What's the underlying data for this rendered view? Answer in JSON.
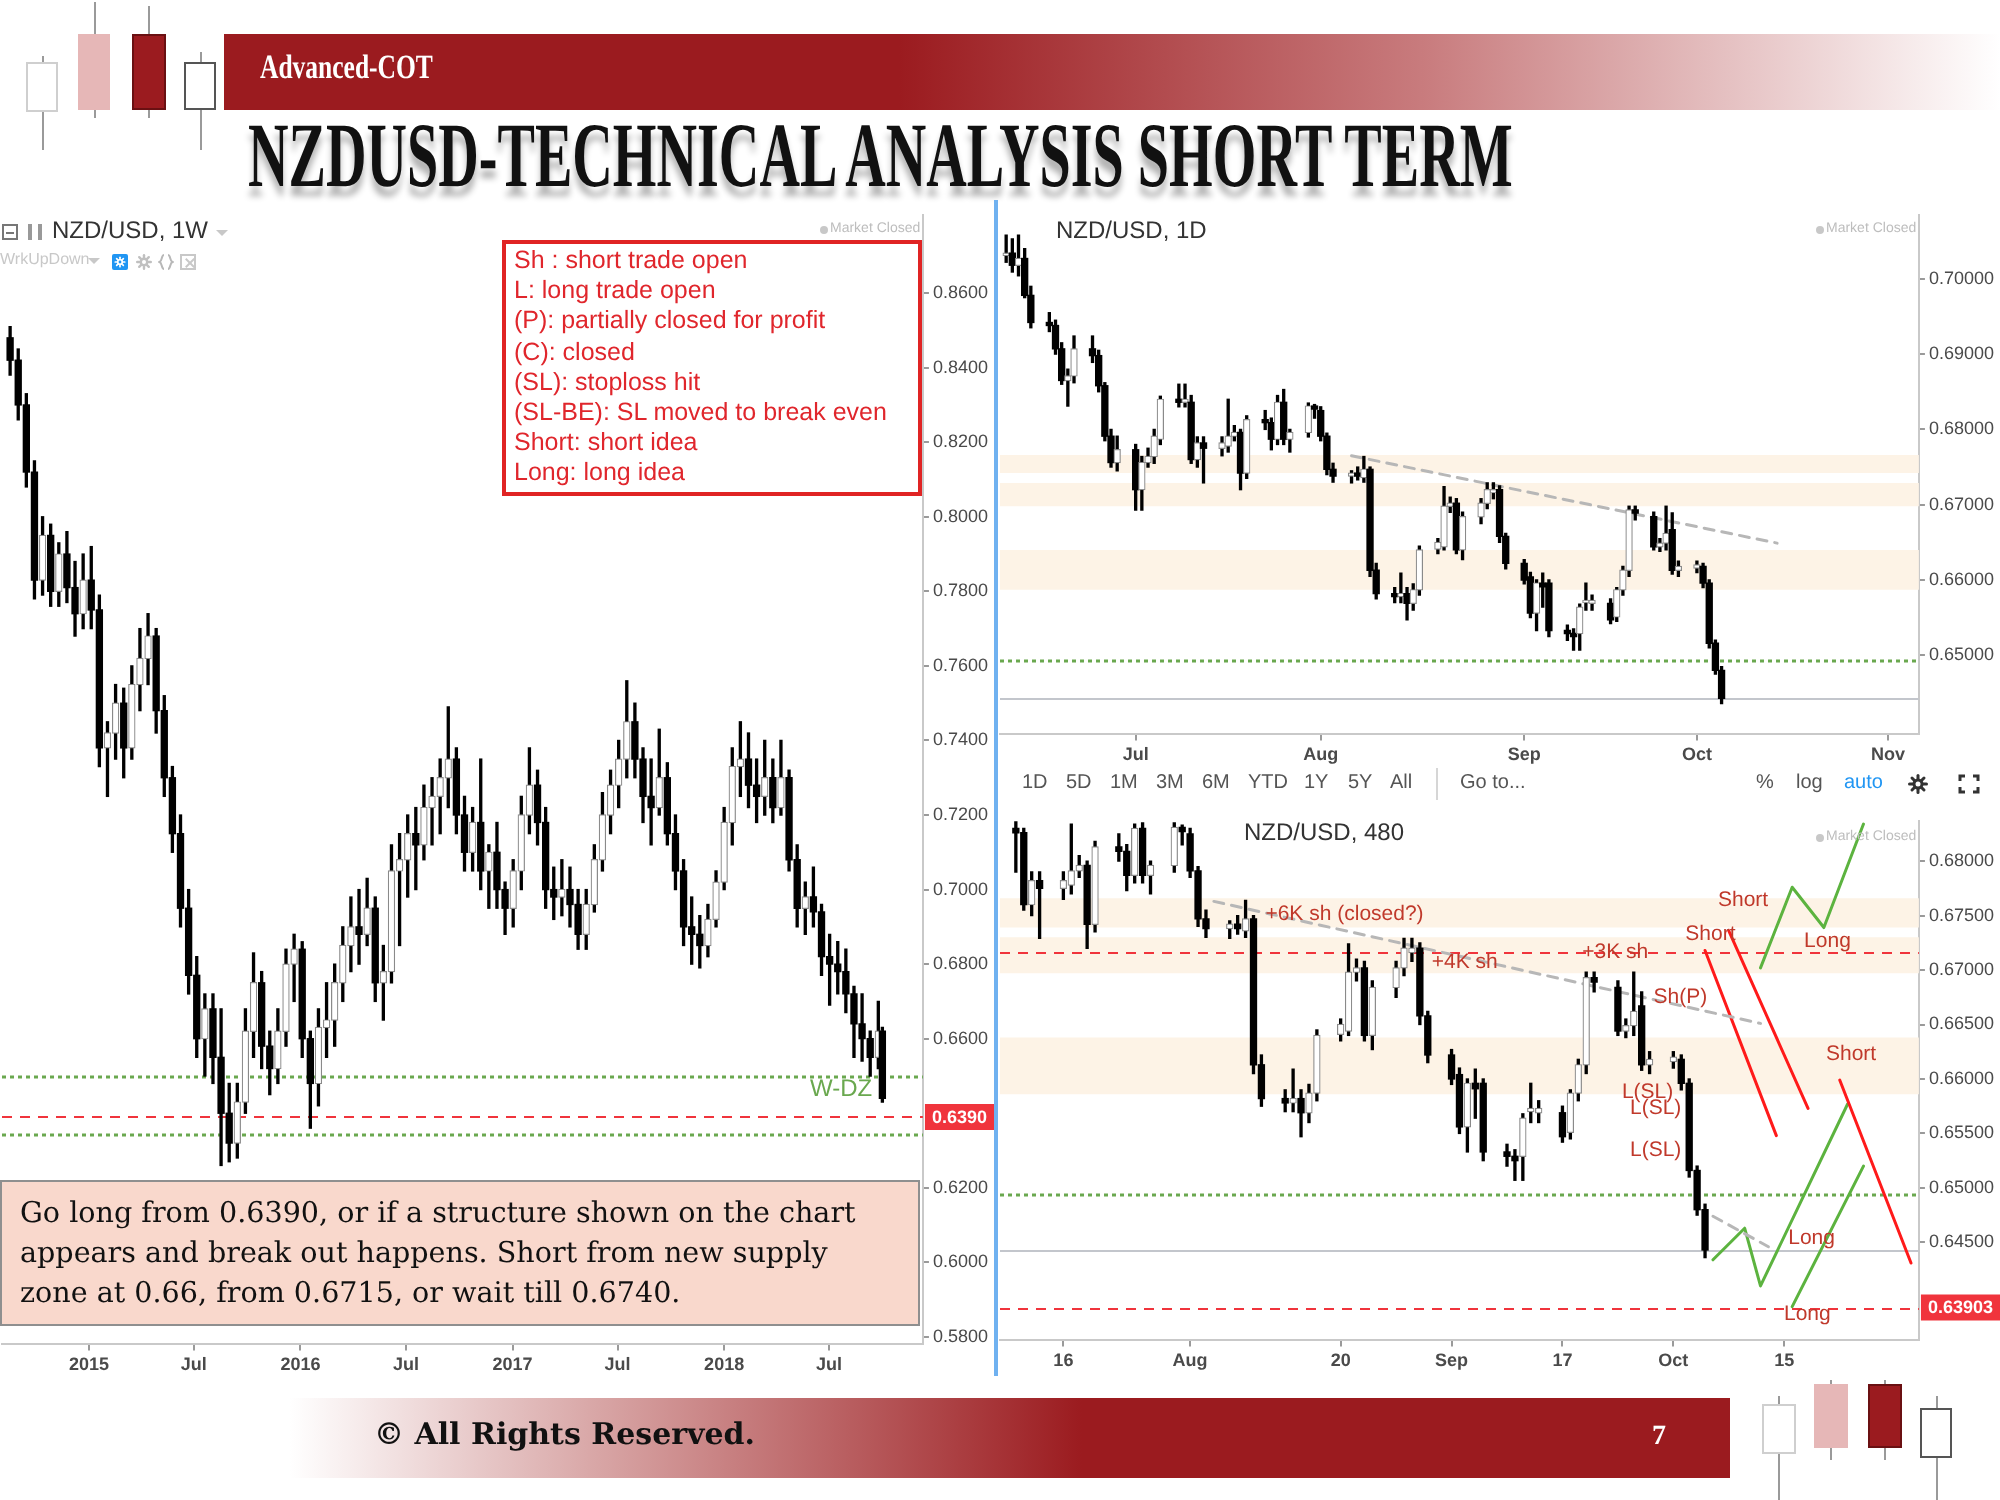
{
  "chart_data": [
    {
      "type": "candlestick",
      "title": "NZDUSD-TECHNICAL ANALYSIS SHORT TERM",
      "subtitle": "Advanced-COT",
      "annotations": [
        "NZD/USD, 1W",
        "Market Closed",
        "WrkUpDown",
        "Sh : short trade open",
        "L: long trade open",
        "(P): partially closed for profit",
        "(C): closed",
        "(SL): stoploss hit",
        "(SL-BE): SL moved to break even",
        "Short: short idea",
        "Long: long idea",
        "Go long from 0.6390, or if a structure shown on the chart appears and break out happens. Short from new supply zone at 0.66, from 0.6715, or wait till 0.6740.",
        "W-DZ",
        "© All Rights Reserved.",
        "7"
      ],
      "x": [
        "2014-08-18",
        "2014-09-01",
        "2014-09-15",
        "2014-09-29",
        "2014-10-13",
        "2014-10-27",
        "2014-11-10",
        "2014-11-24",
        "2014-12-08",
        "2014-12-22",
        "2015-01-05",
        "2015-01-19",
        "2015-02-02",
        "2015-02-16",
        "2015-03-02",
        "2015-03-16",
        "2015-03-30",
        "2015-04-13",
        "2015-04-27",
        "2015-05-11",
        "2015-05-25",
        "2015-06-08",
        "2015-06-22",
        "2015-07-06",
        "2015-07-20",
        "2015-08-03",
        "2015-08-17",
        "2015-08-31",
        "2015-09-14",
        "2015-09-28",
        "2015-10-12",
        "2015-10-26",
        "2015-11-09",
        "2015-11-23",
        "2015-12-07",
        "2015-12-21",
        "2016-01-04",
        "2016-01-18",
        "2016-02-01",
        "2016-02-15",
        "2016-02-29",
        "2016-03-14",
        "2016-03-28",
        "2016-04-11",
        "2016-04-25",
        "2016-05-09",
        "2016-05-23",
        "2016-06-06",
        "2016-06-20",
        "2016-07-04",
        "2016-07-18",
        "2016-08-01",
        "2016-08-15",
        "2016-08-29",
        "2016-09-12",
        "2016-09-26",
        "2016-10-10",
        "2016-10-24",
        "2016-11-07",
        "2016-11-21",
        "2016-12-05",
        "2016-12-19",
        "2017-01-02",
        "2017-01-16",
        "2017-01-30",
        "2017-02-13",
        "2017-02-27",
        "2017-03-13",
        "2017-03-27",
        "2017-04-10",
        "2017-04-24",
        "2017-05-08",
        "2017-05-22",
        "2017-06-05",
        "2017-06-19",
        "2017-07-03",
        "2017-07-17",
        "2017-07-31",
        "2017-08-14",
        "2017-08-28",
        "2017-09-11",
        "2017-09-25",
        "2017-10-09",
        "2017-10-23",
        "2017-11-06",
        "2017-11-20",
        "2017-12-04",
        "2017-12-18",
        "2018-01-01",
        "2018-01-15",
        "2018-01-29",
        "2018-02-12",
        "2018-02-26",
        "2018-03-12",
        "2018-03-26",
        "2018-04-09",
        "2018-04-23",
        "2018-05-07",
        "2018-05-21",
        "2018-06-04",
        "2018-06-18",
        "2018-07-02",
        "2018-07-16",
        "2018-07-30",
        "2018-08-13",
        "2018-08-27",
        "2018-09-10",
        "2018-09-24",
        "2018-10-01"
      ],
      "ohlc": [
        [
          0.848,
          0.851,
          0.838,
          0.842
        ],
        [
          0.842,
          0.845,
          0.826,
          0.83
        ],
        [
          0.83,
          0.833,
          0.808,
          0.812
        ],
        [
          0.812,
          0.815,
          0.778,
          0.783
        ],
        [
          0.783,
          0.8,
          0.779,
          0.795
        ],
        [
          0.795,
          0.798,
          0.776,
          0.78
        ],
        [
          0.78,
          0.793,
          0.776,
          0.79
        ],
        [
          0.79,
          0.796,
          0.777,
          0.781
        ],
        [
          0.781,
          0.788,
          0.768,
          0.774
        ],
        [
          0.774,
          0.79,
          0.77,
          0.783
        ],
        [
          0.783,
          0.792,
          0.77,
          0.775
        ],
        [
          0.775,
          0.779,
          0.733,
          0.738
        ],
        [
          0.738,
          0.745,
          0.725,
          0.742
        ],
        [
          0.742,
          0.755,
          0.735,
          0.75
        ],
        [
          0.75,
          0.754,
          0.73,
          0.738
        ],
        [
          0.738,
          0.76,
          0.735,
          0.755
        ],
        [
          0.755,
          0.77,
          0.748,
          0.762
        ],
        [
          0.762,
          0.774,
          0.755,
          0.768
        ],
        [
          0.768,
          0.77,
          0.742,
          0.748
        ],
        [
          0.748,
          0.752,
          0.725,
          0.73
        ],
        [
          0.73,
          0.733,
          0.71,
          0.715
        ],
        [
          0.715,
          0.72,
          0.69,
          0.695
        ],
        [
          0.695,
          0.7,
          0.672,
          0.677
        ],
        [
          0.677,
          0.682,
          0.655,
          0.66
        ],
        [
          0.66,
          0.672,
          0.65,
          0.668
        ],
        [
          0.668,
          0.672,
          0.648,
          0.655
        ],
        [
          0.655,
          0.668,
          0.626,
          0.64
        ],
        [
          0.64,
          0.648,
          0.627,
          0.632
        ],
        [
          0.632,
          0.648,
          0.628,
          0.643
        ],
        [
          0.643,
          0.668,
          0.64,
          0.662
        ],
        [
          0.662,
          0.683,
          0.655,
          0.675
        ],
        [
          0.675,
          0.678,
          0.652,
          0.658
        ],
        [
          0.658,
          0.662,
          0.645,
          0.652
        ],
        [
          0.652,
          0.668,
          0.648,
          0.662
        ],
        [
          0.662,
          0.684,
          0.658,
          0.68
        ],
        [
          0.68,
          0.688,
          0.67,
          0.684
        ],
        [
          0.684,
          0.686,
          0.655,
          0.66
        ],
        [
          0.66,
          0.662,
          0.636,
          0.648
        ],
        [
          0.648,
          0.668,
          0.642,
          0.663
        ],
        [
          0.663,
          0.675,
          0.655,
          0.665
        ],
        [
          0.665,
          0.68,
          0.658,
          0.675
        ],
        [
          0.675,
          0.69,
          0.67,
          0.685
        ],
        [
          0.685,
          0.698,
          0.678,
          0.69
        ],
        [
          0.69,
          0.7,
          0.68,
          0.688
        ],
        [
          0.688,
          0.703,
          0.685,
          0.695
        ],
        [
          0.695,
          0.698,
          0.67,
          0.675
        ],
        [
          0.675,
          0.685,
          0.665,
          0.678
        ],
        [
          0.678,
          0.712,
          0.675,
          0.705
        ],
        [
          0.705,
          0.715,
          0.685,
          0.708
        ],
        [
          0.708,
          0.72,
          0.698,
          0.715
        ],
        [
          0.715,
          0.722,
          0.7,
          0.712
        ],
        [
          0.712,
          0.728,
          0.708,
          0.722
        ],
        [
          0.722,
          0.73,
          0.712,
          0.725
        ],
        [
          0.725,
          0.735,
          0.715,
          0.73
        ],
        [
          0.73,
          0.749,
          0.722,
          0.735
        ],
        [
          0.735,
          0.738,
          0.715,
          0.72
        ],
        [
          0.72,
          0.725,
          0.705,
          0.71
        ],
        [
          0.71,
          0.722,
          0.705,
          0.718
        ],
        [
          0.718,
          0.735,
          0.7,
          0.705
        ],
        [
          0.705,
          0.712,
          0.695,
          0.71
        ],
        [
          0.71,
          0.718,
          0.695,
          0.7
        ],
        [
          0.7,
          0.702,
          0.688,
          0.695
        ],
        [
          0.695,
          0.708,
          0.69,
          0.705
        ],
        [
          0.705,
          0.725,
          0.7,
          0.72
        ],
        [
          0.72,
          0.738,
          0.715,
          0.728
        ],
        [
          0.728,
          0.732,
          0.712,
          0.718
        ],
        [
          0.718,
          0.722,
          0.695,
          0.7
        ],
        [
          0.7,
          0.706,
          0.692,
          0.698
        ],
        [
          0.698,
          0.708,
          0.693,
          0.7
        ],
        [
          0.7,
          0.706,
          0.69,
          0.696
        ],
        [
          0.696,
          0.7,
          0.684,
          0.688
        ],
        [
          0.688,
          0.7,
          0.684,
          0.696
        ],
        [
          0.696,
          0.712,
          0.694,
          0.708
        ],
        [
          0.708,
          0.726,
          0.705,
          0.72
        ],
        [
          0.72,
          0.732,
          0.715,
          0.728
        ],
        [
          0.728,
          0.74,
          0.722,
          0.735
        ],
        [
          0.735,
          0.756,
          0.73,
          0.745
        ],
        [
          0.745,
          0.75,
          0.73,
          0.735
        ],
        [
          0.735,
          0.738,
          0.718,
          0.725
        ],
        [
          0.725,
          0.735,
          0.712,
          0.722
        ],
        [
          0.722,
          0.743,
          0.72,
          0.73
        ],
        [
          0.73,
          0.734,
          0.712,
          0.715
        ],
        [
          0.715,
          0.72,
          0.7,
          0.705
        ],
        [
          0.705,
          0.708,
          0.685,
          0.69
        ],
        [
          0.69,
          0.698,
          0.68,
          0.688
        ],
        [
          0.688,
          0.693,
          0.679,
          0.685
        ],
        [
          0.685,
          0.696,
          0.682,
          0.692
        ],
        [
          0.692,
          0.705,
          0.69,
          0.702
        ],
        [
          0.702,
          0.722,
          0.7,
          0.718
        ],
        [
          0.718,
          0.738,
          0.712,
          0.733
        ],
        [
          0.733,
          0.745,
          0.725,
          0.735
        ],
        [
          0.735,
          0.742,
          0.722,
          0.728
        ],
        [
          0.728,
          0.735,
          0.718,
          0.725
        ],
        [
          0.725,
          0.74,
          0.72,
          0.73
        ],
        [
          0.73,
          0.735,
          0.718,
          0.722
        ],
        [
          0.722,
          0.74,
          0.72,
          0.73
        ],
        [
          0.73,
          0.732,
          0.705,
          0.708
        ],
        [
          0.708,
          0.712,
          0.69,
          0.695
        ],
        [
          0.695,
          0.702,
          0.688,
          0.698
        ],
        [
          0.698,
          0.706,
          0.69,
          0.694
        ],
        [
          0.694,
          0.696,
          0.677,
          0.682
        ],
        [
          0.682,
          0.688,
          0.669,
          0.68
        ],
        [
          0.68,
          0.686,
          0.672,
          0.678
        ],
        [
          0.678,
          0.684,
          0.667,
          0.672
        ],
        [
          0.672,
          0.674,
          0.655,
          0.664
        ],
        [
          0.664,
          0.672,
          0.654,
          0.66
        ],
        [
          0.66,
          0.662,
          0.65,
          0.655
        ],
        [
          0.655,
          0.67,
          0.652,
          0.662
        ],
        [
          0.662,
          0.663,
          0.643,
          0.644
        ]
      ],
      "xlim": [
        "2014-08-04",
        "2018-12-10"
      ],
      "xticks": [
        {
          "value": "2015-01-01",
          "label": "2015"
        },
        {
          "value": "2015-07-01",
          "label": "Jul"
        },
        {
          "value": "2016-01-01",
          "label": "2016"
        },
        {
          "value": "2016-07-01",
          "label": "Jul"
        },
        {
          "value": "2017-01-01",
          "label": "2017"
        },
        {
          "value": "2017-07-01",
          "label": "Jul"
        },
        {
          "value": "2018-01-01",
          "label": "2018"
        },
        {
          "value": "2018-07-01",
          "label": "Jul"
        }
      ],
      "ylim": [
        0.578,
        0.881
      ],
      "yticks": [
        {
          "value": 0.58,
          "label": "0.5800"
        },
        {
          "value": 0.6,
          "label": "0.6000"
        },
        {
          "value": 0.62,
          "label": "0.6200"
        },
        {
          "value": 0.66,
          "label": "0.6600"
        },
        {
          "value": 0.68,
          "label": "0.6800"
        },
        {
          "value": 0.7,
          "label": "0.7000"
        },
        {
          "value": 0.72,
          "label": "0.7200"
        },
        {
          "value": 0.74,
          "label": "0.7400"
        },
        {
          "value": 0.76,
          "label": "0.7600"
        },
        {
          "value": 0.78,
          "label": "0.7800"
        },
        {
          "value": 0.8,
          "label": "0.8000"
        },
        {
          "value": 0.82,
          "label": "0.8200"
        },
        {
          "value": 0.84,
          "label": "0.8400"
        },
        {
          "value": 0.86,
          "label": "0.8600"
        }
      ],
      "ref_lines": [
        {
          "axis": "y",
          "value": 0.639,
          "label": "0.6390",
          "color": "#f0343c",
          "line_style": "dashed"
        },
        {
          "axis": "y",
          "value": 0.6502,
          "color": "#6aa84f",
          "line_style": "dotted"
        },
        {
          "axis": "y",
          "value": 0.6346,
          "color": "#6aa84f",
          "line_style": "dotted"
        }
      ]
    },
    {
      "type": "candlestick",
      "title": "NZD/USD, 1D",
      "annotations": [
        "Market Closed"
      ],
      "x": [
        "2018-06-11",
        "2018-06-12",
        "2018-06-13",
        "2018-06-14",
        "2018-06-15",
        "2018-06-18",
        "2018-06-19",
        "2018-06-20",
        "2018-06-21",
        "2018-06-22",
        "2018-06-25",
        "2018-06-26",
        "2018-06-27",
        "2018-06-28",
        "2018-06-29",
        "2018-07-02",
        "2018-07-03",
        "2018-07-04",
        "2018-07-05",
        "2018-07-06",
        "2018-07-09",
        "2018-07-10",
        "2018-07-11",
        "2018-07-12",
        "2018-07-13",
        "2018-07-16",
        "2018-07-17",
        "2018-07-18",
        "2018-07-19",
        "2018-07-20",
        "2018-07-23",
        "2018-07-24",
        "2018-07-25",
        "2018-07-26",
        "2018-07-27",
        "2018-07-30",
        "2018-07-31",
        "2018-08-01",
        "2018-08-02",
        "2018-08-03",
        "2018-08-06",
        "2018-08-07",
        "2018-08-08",
        "2018-08-09",
        "2018-08-10",
        "2018-08-13",
        "2018-08-14",
        "2018-08-15",
        "2018-08-16",
        "2018-08-17",
        "2018-08-20",
        "2018-08-21",
        "2018-08-22",
        "2018-08-23",
        "2018-08-24",
        "2018-08-27",
        "2018-08-28",
        "2018-08-29",
        "2018-08-30",
        "2018-08-31",
        "2018-09-03",
        "2018-09-04",
        "2018-09-05",
        "2018-09-06",
        "2018-09-07",
        "2018-09-10",
        "2018-09-11",
        "2018-09-12",
        "2018-09-13",
        "2018-09-14",
        "2018-09-17",
        "2018-09-18",
        "2018-09-19",
        "2018-09-20",
        "2018-09-21",
        "2018-09-24",
        "2018-09-25",
        "2018-09-26",
        "2018-09-27",
        "2018-09-28",
        "2018-10-01",
        "2018-10-02",
        "2018-10-03",
        "2018-10-04",
        "2018-10-05"
      ],
      "ohlc": [
        [
          0.7031,
          0.7058,
          0.7022,
          0.7034
        ],
        [
          0.7034,
          0.7053,
          0.7009,
          0.7018
        ],
        [
          0.7018,
          0.7058,
          0.7004,
          0.7027
        ],
        [
          0.7027,
          0.704,
          0.6975,
          0.6978
        ],
        [
          0.6978,
          0.699,
          0.6935,
          0.6942
        ],
        [
          0.6942,
          0.6955,
          0.693,
          0.6938
        ],
        [
          0.6938,
          0.6945,
          0.69,
          0.6907
        ],
        [
          0.6907,
          0.6915,
          0.686,
          0.6865
        ],
        [
          0.6865,
          0.688,
          0.6831,
          0.6871
        ],
        [
          0.6871,
          0.6924,
          0.6862,
          0.6907
        ],
        [
          0.6907,
          0.6924,
          0.6889,
          0.6898
        ],
        [
          0.6898,
          0.6905,
          0.685,
          0.6858
        ],
        [
          0.6858,
          0.6862,
          0.6785,
          0.6791
        ],
        [
          0.6791,
          0.68,
          0.675,
          0.6756
        ],
        [
          0.6756,
          0.6791,
          0.6745,
          0.6773
        ],
        [
          0.6773,
          0.678,
          0.6693,
          0.672
        ],
        [
          0.672,
          0.6764,
          0.6693,
          0.6756
        ],
        [
          0.6756,
          0.6775,
          0.675,
          0.6764
        ],
        [
          0.6764,
          0.68,
          0.6755,
          0.6791
        ],
        [
          0.6787,
          0.6844,
          0.678,
          0.684
        ],
        [
          0.684,
          0.686,
          0.683,
          0.6836
        ],
        [
          0.6836,
          0.686,
          0.683,
          0.684
        ],
        [
          0.6836,
          0.6845,
          0.6755,
          0.676
        ],
        [
          0.676,
          0.679,
          0.675,
          0.6782
        ],
        [
          0.6782,
          0.679,
          0.6729,
          0.6775
        ],
        [
          0.6775,
          0.679,
          0.6765,
          0.6782
        ],
        [
          0.6778,
          0.684,
          0.677,
          0.6791
        ],
        [
          0.6791,
          0.6805,
          0.6785,
          0.6796
        ],
        [
          0.6796,
          0.68,
          0.672,
          0.6742
        ],
        [
          0.6742,
          0.6818,
          0.6735,
          0.6813
        ],
        [
          0.6813,
          0.6825,
          0.68,
          0.6809
        ],
        [
          0.6809,
          0.6815,
          0.6773,
          0.6787
        ],
        [
          0.6787,
          0.6845,
          0.678,
          0.6836
        ],
        [
          0.6836,
          0.6853,
          0.678,
          0.6787
        ],
        [
          0.6787,
          0.68,
          0.677,
          0.6796
        ],
        [
          0.6796,
          0.6835,
          0.679,
          0.6831
        ],
        [
          0.6831,
          0.6833,
          0.6815,
          0.6827
        ],
        [
          0.6825,
          0.683,
          0.6785,
          0.6791
        ],
        [
          0.6791,
          0.6795,
          0.674,
          0.6747
        ],
        [
          0.6747,
          0.6755,
          0.673,
          0.6738
        ],
        [
          0.6738,
          0.6745,
          0.6729,
          0.6742
        ],
        [
          0.6742,
          0.675,
          0.6733,
          0.6738
        ],
        [
          0.6736,
          0.6764,
          0.673,
          0.6747
        ],
        [
          0.6747,
          0.675,
          0.6605,
          0.6613
        ],
        [
          0.6613,
          0.6622,
          0.6575,
          0.6582
        ],
        [
          0.6582,
          0.659,
          0.657,
          0.6578
        ],
        [
          0.6578,
          0.6609,
          0.657,
          0.6582
        ],
        [
          0.6582,
          0.659,
          0.6547,
          0.6569
        ],
        [
          0.6569,
          0.6595,
          0.656,
          0.6587
        ],
        [
          0.6587,
          0.6645,
          0.658,
          0.664
        ],
        [
          0.6641,
          0.6655,
          0.6635,
          0.665
        ],
        [
          0.6644,
          0.6724,
          0.664,
          0.6698
        ],
        [
          0.6698,
          0.671,
          0.669,
          0.6702
        ],
        [
          0.6702,
          0.6708,
          0.6635,
          0.664
        ],
        [
          0.664,
          0.669,
          0.6627,
          0.6684
        ],
        [
          0.6684,
          0.6708,
          0.6675,
          0.6702
        ],
        [
          0.6702,
          0.6729,
          0.6695,
          0.672
        ],
        [
          0.6716,
          0.6729,
          0.6708,
          0.672
        ],
        [
          0.672,
          0.6725,
          0.665,
          0.6658
        ],
        [
          0.6658,
          0.6662,
          0.6615,
          0.6622
        ],
        [
          0.6622,
          0.6627,
          0.6595,
          0.66
        ],
        [
          0.6604,
          0.661,
          0.655,
          0.6556
        ],
        [
          0.6556,
          0.66,
          0.6533,
          0.6596
        ],
        [
          0.6596,
          0.6609,
          0.6564,
          0.6591
        ],
        [
          0.6596,
          0.66,
          0.6525,
          0.6533
        ],
        [
          0.6533,
          0.654,
          0.652,
          0.6529
        ],
        [
          0.6529,
          0.6535,
          0.6507,
          0.6525
        ],
        [
          0.6529,
          0.6568,
          0.6507,
          0.6564
        ],
        [
          0.657,
          0.6596,
          0.656,
          0.6573
        ],
        [
          0.6569,
          0.658,
          0.656,
          0.6573
        ],
        [
          0.6569,
          0.6575,
          0.6542,
          0.6547
        ],
        [
          0.6551,
          0.659,
          0.6545,
          0.6587
        ],
        [
          0.6587,
          0.6618,
          0.658,
          0.6613
        ],
        [
          0.6613,
          0.6698,
          0.6605,
          0.6693
        ],
        [
          0.6693,
          0.6698,
          0.668,
          0.6689
        ],
        [
          0.6684,
          0.669,
          0.664,
          0.6644
        ],
        [
          0.6644,
          0.6655,
          0.6638,
          0.6649
        ],
        [
          0.6649,
          0.6698,
          0.664,
          0.6662
        ],
        [
          0.6667,
          0.6689,
          0.6608,
          0.6613
        ],
        [
          0.6613,
          0.6625,
          0.6605,
          0.6618
        ],
        [
          0.6616,
          0.6625,
          0.661,
          0.662
        ],
        [
          0.6618,
          0.6622,
          0.659,
          0.6596
        ],
        [
          0.6596,
          0.66,
          0.651,
          0.6516
        ],
        [
          0.6516,
          0.652,
          0.6475,
          0.648
        ],
        [
          0.648,
          0.6485,
          0.6436,
          0.6443
        ]
      ],
      "xlim": [
        "2018-06-10",
        "2018-11-06"
      ],
      "xticks": [
        {
          "value": "2018-07-02",
          "label": "Jul"
        },
        {
          "value": "2018-08-01",
          "label": "Aug"
        },
        {
          "value": "2018-09-03",
          "label": "Sep"
        },
        {
          "value": "2018-10-01",
          "label": "Oct"
        },
        {
          "value": "2018-11-01",
          "label": "Nov"
        }
      ],
      "ylim": [
        0.6395,
        0.7085
      ],
      "yticks": [
        {
          "value": 0.65,
          "label": "0.65000"
        },
        {
          "value": 0.66,
          "label": "0.66000"
        },
        {
          "value": 0.67,
          "label": "0.67000"
        },
        {
          "value": 0.68,
          "label": "0.68000"
        },
        {
          "value": 0.69,
          "label": "0.69000"
        },
        {
          "value": 0.7,
          "label": "0.70000"
        }
      ],
      "bands": [
        {
          "axis": "y",
          "from": 0.6742,
          "to": 0.6766,
          "color": "#fdf3e6"
        },
        {
          "axis": "y",
          "from": 0.6698,
          "to": 0.6729,
          "color": "#fdf3e6"
        },
        {
          "axis": "y",
          "from": 0.6587,
          "to": 0.664,
          "color": "#fdf3e6"
        }
      ],
      "ref_lines": [
        {
          "axis": "y",
          "value": 0.6495,
          "color": "#6aa84f",
          "line_style": "dotted"
        },
        {
          "axis": "y",
          "value": 0.6443,
          "color": "#c3c6cc",
          "line_style": "solid"
        }
      ],
      "series": [
        {
          "type": "line",
          "x": [
            "2018-08-06",
            "2018-10-14"
          ],
          "values": [
            0.6765,
            0.6649
          ],
          "color": "#b7b7b7",
          "line_style": "dashed"
        }
      ]
    },
    {
      "type": "candlestick",
      "title": "NZD/USD, 480",
      "annotations": [
        "1D",
        "5D",
        "1M",
        "3M",
        "6M",
        "YTD",
        "1Y",
        "5Y",
        "All",
        "Go to...",
        "%",
        "log",
        "auto",
        "Market Closed",
        {
          "text": "+6K sh (closed?)",
          "x": "2018-08-10",
          "y": 0.6751
        },
        {
          "text": "+4K sh",
          "x": "2018-08-31",
          "y": 0.6707
        },
        {
          "text": "+3K sh",
          "x": "2018-09-19",
          "y": 0.6716
        },
        {
          "text": "Sh(P)",
          "x": "2018-09-28",
          "y": 0.6675
        },
        {
          "text": "L(SL)",
          "x": "2018-09-24",
          "y": 0.6588
        },
        "L(SL)",
        "L(SL)",
        "Short",
        {
          "text": "Short",
          "x": "2018-10-02",
          "y": 0.6733
        },
        {
          "text": "Long",
          "x": "2018-10-17",
          "y": 0.6726
        },
        "Short",
        {
          "text": "Long",
          "x": "2018-10-15",
          "y": 0.6454
        },
        "Long"
      ],
      "x": [
        "2018-07-10",
        "2018-07-11",
        "2018-07-12",
        "2018-07-13",
        "2018-07-16",
        "2018-07-17",
        "2018-07-18",
        "2018-07-19",
        "2018-07-20",
        "2018-07-23",
        "2018-07-24",
        "2018-07-25",
        "2018-07-26",
        "2018-07-27",
        "2018-07-30",
        "2018-07-31",
        "2018-08-01",
        "2018-08-02",
        "2018-08-03",
        "2018-08-06",
        "2018-08-07",
        "2018-08-08",
        "2018-08-09",
        "2018-08-10",
        "2018-08-13",
        "2018-08-14",
        "2018-08-15",
        "2018-08-16",
        "2018-08-17",
        "2018-08-20",
        "2018-08-21",
        "2018-08-22",
        "2018-08-23",
        "2018-08-24",
        "2018-08-27",
        "2018-08-28",
        "2018-08-29",
        "2018-08-30",
        "2018-08-31",
        "2018-09-03",
        "2018-09-04",
        "2018-09-05",
        "2018-09-06",
        "2018-09-07",
        "2018-09-10",
        "2018-09-11",
        "2018-09-12",
        "2018-09-13",
        "2018-09-14",
        "2018-09-17",
        "2018-09-18",
        "2018-09-19",
        "2018-09-20",
        "2018-09-21",
        "2018-09-24",
        "2018-09-25",
        "2018-09-26",
        "2018-09-27",
        "2018-09-28",
        "2018-10-01",
        "2018-10-02",
        "2018-10-03",
        "2018-10-04",
        "2018-10-05"
      ],
      "ohlc": [
        [
          0.683,
          0.6836,
          0.679,
          0.6826
        ],
        [
          0.6826,
          0.683,
          0.6755,
          0.676
        ],
        [
          0.676,
          0.679,
          0.675,
          0.6782
        ],
        [
          0.6782,
          0.679,
          0.6729,
          0.6775
        ],
        [
          0.6775,
          0.679,
          0.6765,
          0.6782
        ],
        [
          0.6778,
          0.6834,
          0.677,
          0.6791
        ],
        [
          0.6791,
          0.6805,
          0.6785,
          0.6796
        ],
        [
          0.6796,
          0.68,
          0.672,
          0.6742
        ],
        [
          0.6742,
          0.6818,
          0.6735,
          0.6813
        ],
        [
          0.6813,
          0.6825,
          0.68,
          0.6809
        ],
        [
          0.6809,
          0.6815,
          0.6773,
          0.6787
        ],
        [
          0.6787,
          0.6834,
          0.678,
          0.683
        ],
        [
          0.683,
          0.6835,
          0.678,
          0.6787
        ],
        [
          0.6787,
          0.68,
          0.677,
          0.6796
        ],
        [
          0.6796,
          0.6835,
          0.679,
          0.6831
        ],
        [
          0.6831,
          0.6833,
          0.6815,
          0.6827
        ],
        [
          0.6825,
          0.683,
          0.6785,
          0.6791
        ],
        [
          0.6791,
          0.6795,
          0.674,
          0.6747
        ],
        [
          0.6747,
          0.6755,
          0.673,
          0.6738
        ],
        [
          0.6738,
          0.6745,
          0.6729,
          0.6742
        ],
        [
          0.6742,
          0.675,
          0.6733,
          0.6738
        ],
        [
          0.6736,
          0.6764,
          0.673,
          0.6747
        ],
        [
          0.6747,
          0.675,
          0.6605,
          0.6613
        ],
        [
          0.6613,
          0.6622,
          0.6575,
          0.6582
        ],
        [
          0.6582,
          0.659,
          0.657,
          0.6578
        ],
        [
          0.6578,
          0.6609,
          0.657,
          0.6582
        ],
        [
          0.6582,
          0.659,
          0.6547,
          0.6569
        ],
        [
          0.6569,
          0.6595,
          0.656,
          0.6587
        ],
        [
          0.6587,
          0.6645,
          0.658,
          0.664
        ],
        [
          0.6641,
          0.6655,
          0.6635,
          0.665
        ],
        [
          0.6644,
          0.6724,
          0.664,
          0.6698
        ],
        [
          0.6698,
          0.671,
          0.669,
          0.6702
        ],
        [
          0.6702,
          0.6708,
          0.6635,
          0.664
        ],
        [
          0.664,
          0.669,
          0.6627,
          0.6684
        ],
        [
          0.6684,
          0.6708,
          0.6675,
          0.6702
        ],
        [
          0.6702,
          0.6729,
          0.6695,
          0.672
        ],
        [
          0.6716,
          0.6729,
          0.6708,
          0.672
        ],
        [
          0.672,
          0.6725,
          0.665,
          0.6658
        ],
        [
          0.6658,
          0.6662,
          0.6615,
          0.6622
        ],
        [
          0.6622,
          0.6627,
          0.6595,
          0.66
        ],
        [
          0.6604,
          0.661,
          0.655,
          0.6556
        ],
        [
          0.6556,
          0.66,
          0.6533,
          0.6596
        ],
        [
          0.6596,
          0.6609,
          0.6564,
          0.6591
        ],
        [
          0.6596,
          0.66,
          0.6525,
          0.6533
        ],
        [
          0.6533,
          0.654,
          0.652,
          0.6529
        ],
        [
          0.6529,
          0.6535,
          0.6507,
          0.6525
        ],
        [
          0.6529,
          0.6568,
          0.6507,
          0.6564
        ],
        [
          0.657,
          0.6596,
          0.656,
          0.6573
        ],
        [
          0.6569,
          0.658,
          0.656,
          0.6573
        ],
        [
          0.6569,
          0.6575,
          0.6542,
          0.6547
        ],
        [
          0.6551,
          0.659,
          0.6545,
          0.6587
        ],
        [
          0.6587,
          0.6618,
          0.658,
          0.6613
        ],
        [
          0.6613,
          0.6698,
          0.6605,
          0.6693
        ],
        [
          0.6693,
          0.6698,
          0.668,
          0.6689
        ],
        [
          0.6684,
          0.669,
          0.664,
          0.6644
        ],
        [
          0.6644,
          0.6655,
          0.6638,
          0.6649
        ],
        [
          0.6649,
          0.6698,
          0.664,
          0.6662
        ],
        [
          0.6667,
          0.668,
          0.6608,
          0.6613
        ],
        [
          0.6613,
          0.6625,
          0.6605,
          0.6618
        ],
        [
          0.6616,
          0.6625,
          0.661,
          0.662
        ],
        [
          0.6618,
          0.6622,
          0.659,
          0.6596
        ],
        [
          0.6596,
          0.66,
          0.651,
          0.6516
        ],
        [
          0.6516,
          0.652,
          0.6475,
          0.648
        ],
        [
          0.648,
          0.6485,
          0.6436,
          0.6443
        ]
      ],
      "xlim": [
        "2018-07-08",
        "2018-11-01"
      ],
      "xticks": [
        {
          "value": "2018-07-16",
          "label": "16"
        },
        {
          "value": "2018-08-01",
          "label": "Aug"
        },
        {
          "value": "2018-08-20",
          "label": "20"
        },
        {
          "value": "2018-09-03",
          "label": "Sep"
        },
        {
          "value": "2018-09-17",
          "label": "17"
        },
        {
          "value": "2018-10-01",
          "label": "Oct"
        },
        {
          "value": "2018-10-15",
          "label": "15"
        }
      ],
      "ylim": [
        0.636,
        0.6837
      ],
      "yticks": [
        {
          "value": 0.645,
          "label": "0.64500"
        },
        {
          "value": 0.65,
          "label": "0.65000"
        },
        {
          "value": 0.655,
          "label": "0.65500"
        },
        {
          "value": 0.66,
          "label": "0.66000"
        },
        {
          "value": 0.665,
          "label": "0.66500"
        },
        {
          "value": 0.67,
          "label": "0.67000"
        },
        {
          "value": 0.675,
          "label": "0.67500"
        },
        {
          "value": 0.68,
          "label": "0.68000"
        }
      ],
      "bands": [
        {
          "axis": "y",
          "from": 0.6739,
          "to": 0.6766,
          "color": "#fdf3e6"
        },
        {
          "axis": "y",
          "from": 0.6697,
          "to": 0.673,
          "color": "#fdf3e6"
        },
        {
          "axis": "y",
          "from": 0.6586,
          "to": 0.6638,
          "color": "#fdf3e6"
        }
      ],
      "ref_lines": [
        {
          "axis": "y",
          "value": 0.63903,
          "label": "0.63903",
          "color": "#f0343c",
          "line_style": "dashed"
        },
        {
          "axis": "y",
          "value": 0.6717,
          "color": "#f0343c",
          "line_style": "dashed"
        },
        {
          "axis": "y",
          "value": 0.6495,
          "color": "#6aa84f",
          "line_style": "dotted"
        },
        {
          "axis": "y",
          "value": 0.6443,
          "color": "#c3c6cc",
          "line_style": "solid"
        }
      ],
      "series": [
        {
          "type": "line",
          "x": [
            "2018-08-04",
            "2018-10-12"
          ],
          "values": [
            0.6763,
            0.6651
          ],
          "color": "#b7b7b7",
          "line_style": "dashed"
        },
        {
          "type": "line",
          "x": [
            "2018-10-06",
            "2018-10-13"
          ],
          "values": [
            0.6474,
            0.6446
          ],
          "color": "#b7b7b7",
          "line_style": "dashed"
        },
        {
          "type": "line",
          "x": [
            "2018-10-05",
            "2018-10-14"
          ],
          "values": [
            0.6718,
            0.6548
          ],
          "color": "#ff1a1a"
        },
        {
          "type": "line",
          "x": [
            "2018-10-08",
            "2018-10-18"
          ],
          "values": [
            0.6736,
            0.6573
          ],
          "color": "#ff1a1a"
        },
        {
          "type": "line",
          "x": [
            "2018-10-22",
            "2018-10-31"
          ],
          "values": [
            0.6599,
            0.6431
          ],
          "color": "#ff1a1a"
        },
        {
          "type": "line",
          "x": [
            "2018-10-12",
            "2018-10-16",
            "2018-10-20",
            "2018-10-25"
          ],
          "values": [
            0.6702,
            0.6776,
            0.6739,
            0.6834
          ],
          "color": "#5cb33f"
        },
        {
          "type": "line",
          "x": [
            "2018-10-06",
            "2018-10-10",
            "2018-10-12",
            "2018-10-23"
          ],
          "values": [
            0.6434,
            0.6463,
            0.641,
            0.6577
          ],
          "color": "#5cb33f"
        },
        {
          "type": "line",
          "x": [
            "2018-10-16",
            "2018-10-25"
          ],
          "values": [
            0.6391,
            0.652
          ],
          "color": "#5cb33f"
        }
      ]
    }
  ]
}
